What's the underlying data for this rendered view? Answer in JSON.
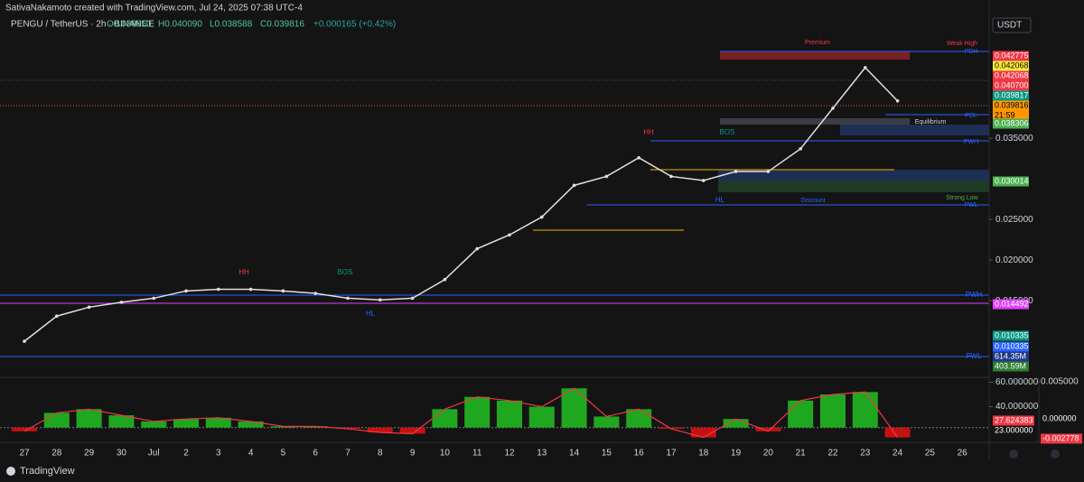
{
  "header": {
    "credit": "SativaNakamoto created with TradingView.com, Jul 24, 2025 07:38 UTC-4",
    "symbol": "PENGU / TetherUS · 2h · BINANCE",
    "ohlc": [
      "O0.039650",
      "H0.040090",
      "L0.038588",
      "C0.039816",
      "+0.000165 (+0.42%)"
    ],
    "currency": "USDT",
    "footer": "TradingView"
  },
  "chart_data": {
    "type": "line",
    "categories": [
      "27",
      "28",
      "29",
      "30",
      "Jul",
      "2",
      "3",
      "4",
      "5",
      "6",
      "7",
      "8",
      "9",
      "10",
      "11",
      "12",
      "13",
      "14",
      "15",
      "16",
      "17",
      "18",
      "19",
      "20",
      "21",
      "22",
      "23",
      "24",
      "25",
      "26"
    ],
    "series": [
      {
        "name": "PENGU / TetherUS",
        "color": "#e0e0e0",
        "values": [
          0.01,
          0.0131,
          0.0142,
          0.0148,
          0.0153,
          0.0162,
          0.0164,
          0.0164,
          0.0162,
          0.0159,
          0.0153,
          0.0151,
          0.0153,
          0.0176,
          0.0214,
          0.0231,
          0.0253,
          0.0292,
          0.0303,
          0.0326,
          0.0303,
          0.0298,
          0.0309,
          0.0309,
          0.0337,
          0.0387,
          0.0437,
          0.0396,
          null,
          null
        ]
      }
    ],
    "ylim": [
      0.0059,
      0.0498
    ],
    "yticks": [
      {
        "value": 0.015,
        "label": "0.015000"
      },
      {
        "value": 0.02,
        "label": "0.020000"
      },
      {
        "value": 0.025,
        "label": "0.025000"
      },
      {
        "value": 0.035,
        "label": "0.035000"
      }
    ],
    "price_labels": [
      {
        "value": 0.042775,
        "label": "0.042775",
        "color": "#f23645"
      },
      {
        "value": 0.042068,
        "label": "0.042068",
        "color": "#ffeb3b"
      },
      {
        "value": 0.042068,
        "label": "0.042068",
        "color": "#f23645"
      },
      {
        "value": 0.0407,
        "label": "0.040700",
        "color": "#f23645"
      },
      {
        "value": 0.039817,
        "label": "0.039817",
        "color": "#089981"
      },
      {
        "value": 0.039816,
        "label": "0.039816",
        "color": "#ff9800",
        "timer": "21:59"
      },
      {
        "value": 0.038306,
        "label": "0.038306",
        "color": "#4caf50"
      },
      {
        "value": 0.030014,
        "label": "0.030014",
        "color": "#4caf50"
      },
      {
        "value": 0.014492,
        "label": "0.014492",
        "color": "#e040fb"
      },
      {
        "value": 0.010335,
        "label": "0.010335",
        "color": "#089981"
      },
      {
        "value": 0.010335,
        "label": "0.010335",
        "color": "#2962ff"
      },
      {
        "value": 614350000,
        "label": "614.35M",
        "color": "#1e3a8a"
      },
      {
        "value": 403590000,
        "label": "403.59M",
        "color": "#2e7d32"
      }
    ],
    "annotations": [
      "Premium",
      "Weak High",
      "PDH",
      "PDL",
      "Equilibrium",
      "PWH",
      "Discount",
      "Strong Low",
      "PWL",
      "HH",
      "HH",
      "HL",
      "HL",
      "BOS",
      "BOS",
      "PWH",
      "PWL"
    ],
    "oscillator": {
      "values": [
        20,
        35,
        38,
        33,
        28,
        30,
        31,
        28,
        24,
        24,
        22,
        19,
        18,
        38,
        48,
        45,
        40,
        55,
        32,
        38,
        22,
        15,
        30,
        20,
        45,
        50,
        52,
        15,
        null,
        null
      ],
      "baseline": 23,
      "ylim": [
        11,
        64
      ],
      "yticks": [
        {
          "value": 60,
          "label": "60.000000"
        },
        {
          "value": 40,
          "label": "40.000000"
        }
      ],
      "right_ticks": [
        {
          "value": 0.005,
          "label": "0.005000"
        }
      ],
      "labels": [
        {
          "value": 27.624383,
          "label": "27.624383",
          "color": "#f23645"
        },
        {
          "value": 23,
          "label": "23.000000",
          "color": "#141414"
        },
        {
          "value": 0,
          "label": "0.000000",
          "color": "#141414"
        },
        {
          "value": -0.002778,
          "label": "-0.002778",
          "color": "#f23645"
        }
      ]
    },
    "grid": false
  }
}
